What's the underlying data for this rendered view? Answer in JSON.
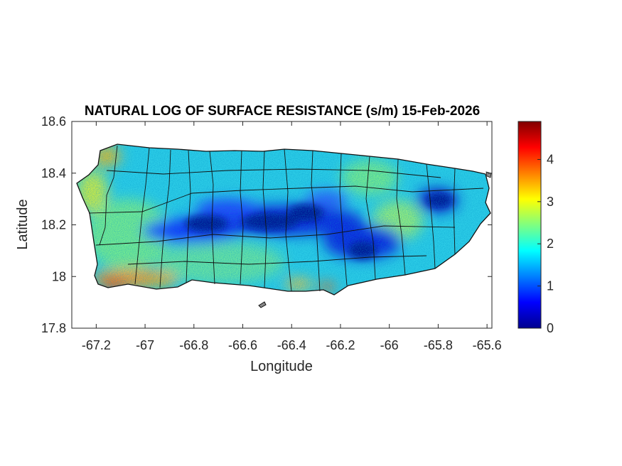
{
  "chart_data": {
    "type": "heatmap",
    "title": "NATURAL LOG OF SURFACE RESISTANCE (s/m) 15-Feb-2026",
    "xlabel": "Longitude",
    "ylabel": "Latitude",
    "xlim": [
      -67.3,
      -65.58
    ],
    "ylim": [
      17.8,
      18.6
    ],
    "xticks": [
      -67.2,
      -67,
      -66.8,
      -66.6,
      -66.4,
      -66.2,
      -66,
      -65.8,
      -65.6
    ],
    "xtick_labels": [
      "-67.2",
      "-67",
      "-66.8",
      "-66.6",
      "-66.4",
      "-66.2",
      "-66",
      "-65.8",
      "-65.6"
    ],
    "yticks": [
      17.8,
      18,
      18.2,
      18.4,
      18.6
    ],
    "ytick_labels": [
      "17.8",
      "18",
      "18.2",
      "18.4",
      "18.6"
    ],
    "colorbar": {
      "colormap": "jet",
      "clim": [
        0,
        4.9
      ],
      "ticks": [
        0,
        1,
        2,
        3,
        4
      ],
      "tick_labels": [
        "0",
        "1",
        "2",
        "3",
        "4"
      ]
    },
    "grid": false,
    "features": [
      {
        "name": "low-resistance band central cordillera",
        "lon": -66.5,
        "lat": 18.2,
        "value": 0.5
      },
      {
        "name": "low-resistance patch east",
        "lon": -65.8,
        "lat": 18.28,
        "value": 0.4
      },
      {
        "name": "south coast high resistance",
        "lon": -67.05,
        "lat": 17.98,
        "value": 3.9
      },
      {
        "name": "northwest corner high resistance",
        "lon": -67.18,
        "lat": 18.46,
        "value": 3.6
      }
    ]
  }
}
